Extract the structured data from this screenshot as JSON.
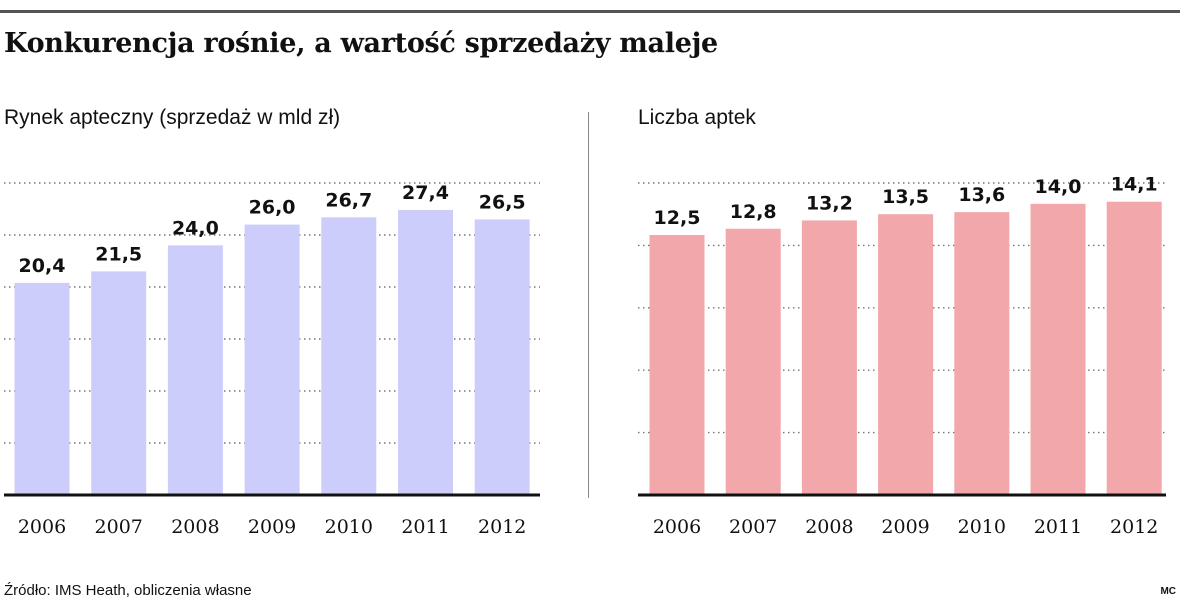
{
  "title": "Konkurencja rośnie, a wartość sprzedaży maleje",
  "source": "Źródło: IMS Heath, obliczenia własne",
  "credit": "MC",
  "chart_data": [
    {
      "type": "bar",
      "title": "Rynek apteczny (sprzedaż w mld zł)",
      "categories": [
        "2006",
        "2007",
        "2008",
        "2009",
        "2010",
        "2011",
        "2012"
      ],
      "values": [
        20.4,
        21.5,
        24.0,
        26.0,
        26.7,
        27.4,
        26.5
      ],
      "value_labels": [
        "20,4",
        "21,5",
        "24,0",
        "26,0",
        "26,7",
        "27,4",
        "26,5"
      ],
      "ylim": [
        0,
        30
      ],
      "grid": true,
      "color": "#cccdfb"
    },
    {
      "type": "bar",
      "title": "Liczba aptek",
      "categories": [
        "2006",
        "2007",
        "2008",
        "2009",
        "2010",
        "2011",
        "2012"
      ],
      "values": [
        12.5,
        12.8,
        13.2,
        13.5,
        13.6,
        14.0,
        14.1
      ],
      "value_labels": [
        "12,5",
        "12,8",
        "13,2",
        "13,5",
        "13,6",
        "14,0",
        "14,1"
      ],
      "ylim": [
        0,
        15
      ],
      "grid": true,
      "color": "#f2a8ab"
    }
  ]
}
